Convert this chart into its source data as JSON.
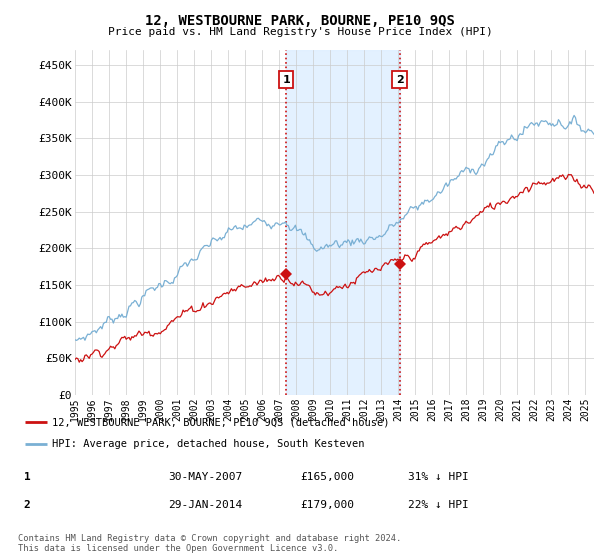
{
  "title": "12, WESTBOURNE PARK, BOURNE, PE10 9QS",
  "subtitle": "Price paid vs. HM Land Registry's House Price Index (HPI)",
  "ylabel_ticks": [
    "£0",
    "£50K",
    "£100K",
    "£150K",
    "£200K",
    "£250K",
    "£300K",
    "£350K",
    "£400K",
    "£450K"
  ],
  "ytick_values": [
    0,
    50000,
    100000,
    150000,
    200000,
    250000,
    300000,
    350000,
    400000,
    450000
  ],
  "ylim": [
    0,
    470000
  ],
  "xlim_start": 1995.0,
  "xlim_end": 2025.5,
  "hpi_color": "#7ab0d4",
  "price_color": "#cc1111",
  "transaction1_date": 2007.41,
  "transaction1_price": 165000,
  "transaction2_date": 2014.08,
  "transaction2_price": 179000,
  "legend_entry1": "12, WESTBOURNE PARK, BOURNE, PE10 9QS (detached house)",
  "legend_entry2": "HPI: Average price, detached house, South Kesteven",
  "table_rows": [
    [
      "1",
      "30-MAY-2007",
      "£165,000",
      "31% ↓ HPI"
    ],
    [
      "2",
      "29-JAN-2014",
      "£179,000",
      "22% ↓ HPI"
    ]
  ],
  "footnote": "Contains HM Land Registry data © Crown copyright and database right 2024.\nThis data is licensed under the Open Government Licence v3.0.",
  "background_color": "#ffffff",
  "grid_color": "#cccccc",
  "shaded_region_color": "#ddeeff"
}
